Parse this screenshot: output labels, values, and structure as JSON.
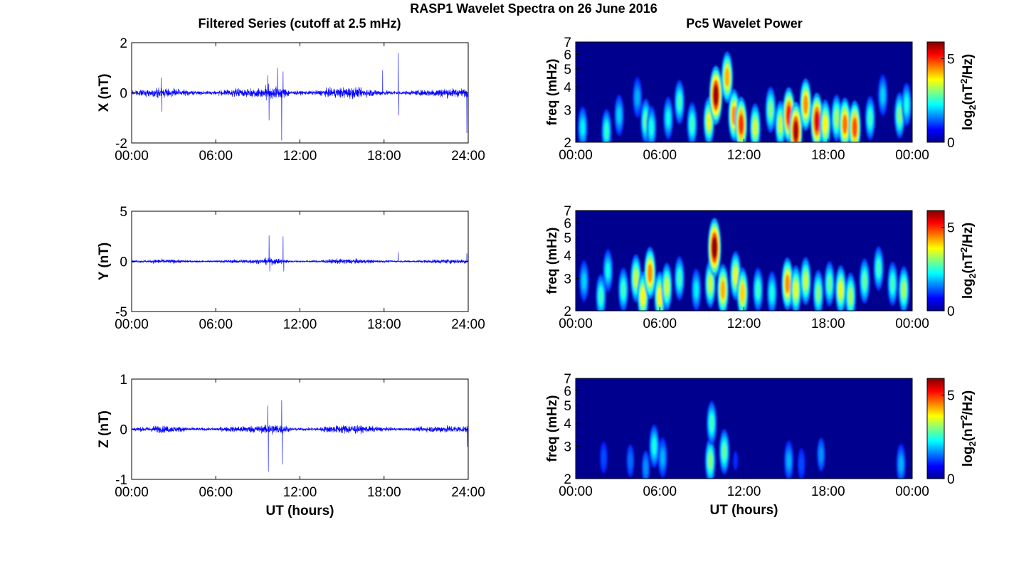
{
  "title": "RASP1 Wavelet Spectra on 26 June 2016",
  "left_title": "Filtered Series (cutoff at 2.5 mHz)",
  "right_title": "Pc5 Wavelet Power",
  "colors": {
    "trace": "#0000ff",
    "spec_background": "#00008f",
    "colormap": [
      "#00008f",
      "#0000ff",
      "#00ffff",
      "#ffff00",
      "#ff0000",
      "#800000"
    ]
  },
  "chart_data": [
    {
      "type": "line",
      "panel": "X",
      "ylabel": "X (nT)",
      "ylim": [
        -2,
        2
      ],
      "yticks": [
        "-2",
        "0",
        "2"
      ],
      "xlim": [
        0,
        24
      ],
      "xticks": [
        "00:00",
        "06:00",
        "12:00",
        "18:00",
        "24:00"
      ],
      "xlabel": "",
      "noise_amplitude": 0.25,
      "spikes": [
        {
          "t": 2.1,
          "v": 0.6
        },
        {
          "t": 2.15,
          "v": -0.75
        },
        {
          "t": 9.7,
          "v": 0.7
        },
        {
          "t": 9.8,
          "v": -1.1
        },
        {
          "t": 10.4,
          "v": 1.0
        },
        {
          "t": 10.7,
          "v": -1.9
        },
        {
          "t": 10.8,
          "v": 0.85
        },
        {
          "t": 17.9,
          "v": 0.9
        },
        {
          "t": 19.0,
          "v": 1.6
        },
        {
          "t": 19.05,
          "v": -0.9
        },
        {
          "t": 23.9,
          "v": -1.6
        }
      ]
    },
    {
      "type": "line",
      "panel": "Y",
      "ylabel": "Y (nT)",
      "ylim": [
        -5,
        5
      ],
      "yticks": [
        "-5",
        "0",
        "5"
      ],
      "xlim": [
        0,
        24
      ],
      "xticks": [
        "00:00",
        "06:00",
        "12:00",
        "18:00",
        "24:00"
      ],
      "xlabel": "",
      "noise_amplitude": 0.3,
      "spikes": [
        {
          "t": 9.8,
          "v": 2.6
        },
        {
          "t": 9.85,
          "v": -1.0
        },
        {
          "t": 10.8,
          "v": 2.5
        },
        {
          "t": 10.85,
          "v": -1.0
        },
        {
          "t": 19.0,
          "v": 0.9
        },
        {
          "t": 23.9,
          "v": 0.8
        }
      ]
    },
    {
      "type": "line",
      "panel": "Z",
      "ylabel": "Z (nT)",
      "ylim": [
        -1,
        1
      ],
      "yticks": [
        "-1",
        "0",
        "1"
      ],
      "xlim": [
        0,
        24
      ],
      "xticks": [
        "00:00",
        "06:00",
        "12:00",
        "18:00",
        "24:00"
      ],
      "xlabel": "UT (hours)",
      "noise_amplitude": 0.1,
      "spikes": [
        {
          "t": 9.7,
          "v": 0.47
        },
        {
          "t": 9.75,
          "v": -0.85
        },
        {
          "t": 10.7,
          "v": 0.58
        },
        {
          "t": 10.75,
          "v": -0.7
        },
        {
          "t": 23.95,
          "v": -0.35
        }
      ]
    },
    {
      "type": "heatmap",
      "panel": "X",
      "ylabel": "freq (mHz)",
      "yticks": [
        "2",
        "3",
        "4",
        "5",
        "6",
        "7"
      ],
      "ylim": [
        2,
        7
      ],
      "xlim": [
        0,
        24
      ],
      "xticks": [
        "00:00",
        "06:00",
        "12:00",
        "18:00",
        "00:00"
      ],
      "xlabel": "",
      "colorbar_label": "log2(nT^2/Hz)",
      "colorbar_ticks": [
        "0",
        "5"
      ],
      "clim": [
        0,
        6
      ],
      "blobs": [
        {
          "t": 0.5,
          "f": 2.4,
          "p": 2.2
        },
        {
          "t": 2.2,
          "f": 2.3,
          "p": 2.5
        },
        {
          "t": 3.1,
          "f": 2.8,
          "p": 2.0
        },
        {
          "t": 4.4,
          "f": 3.5,
          "p": 1.8
        },
        {
          "t": 5.0,
          "f": 2.6,
          "p": 2.8
        },
        {
          "t": 5.4,
          "f": 2.4,
          "p": 2.4
        },
        {
          "t": 6.6,
          "f": 2.7,
          "p": 2.3
        },
        {
          "t": 7.4,
          "f": 3.3,
          "p": 2.6
        },
        {
          "t": 8.3,
          "f": 2.5,
          "p": 2.6
        },
        {
          "t": 9.5,
          "f": 2.6,
          "p": 3.6
        },
        {
          "t": 10.0,
          "f": 3.6,
          "p": 5.8
        },
        {
          "t": 10.8,
          "f": 4.5,
          "p": 4.2
        },
        {
          "t": 11.3,
          "f": 2.8,
          "p": 4.4
        },
        {
          "t": 11.8,
          "f": 2.5,
          "p": 5.0
        },
        {
          "t": 12.8,
          "f": 2.4,
          "p": 3.5
        },
        {
          "t": 13.9,
          "f": 3.0,
          "p": 3.0
        },
        {
          "t": 14.6,
          "f": 2.5,
          "p": 3.4
        },
        {
          "t": 15.2,
          "f": 2.8,
          "p": 5.2
        },
        {
          "t": 15.7,
          "f": 2.3,
          "p": 5.7
        },
        {
          "t": 16.4,
          "f": 3.2,
          "p": 4.4
        },
        {
          "t": 17.2,
          "f": 2.6,
          "p": 5.4
        },
        {
          "t": 17.8,
          "f": 2.5,
          "p": 3.8
        },
        {
          "t": 18.6,
          "f": 2.7,
          "p": 3.2
        },
        {
          "t": 19.2,
          "f": 2.5,
          "p": 4.6
        },
        {
          "t": 19.9,
          "f": 2.4,
          "p": 4.8
        },
        {
          "t": 21.0,
          "f": 2.7,
          "p": 2.6
        },
        {
          "t": 21.9,
          "f": 3.6,
          "p": 2.0
        },
        {
          "t": 23.1,
          "f": 2.8,
          "p": 3.0
        },
        {
          "t": 23.6,
          "f": 3.2,
          "p": 2.4
        }
      ]
    },
    {
      "type": "heatmap",
      "panel": "Y",
      "ylabel": "freq (mHz)",
      "yticks": [
        "2",
        "3",
        "4",
        "5",
        "6",
        "7"
      ],
      "ylim": [
        2,
        7
      ],
      "xlim": [
        0,
        24
      ],
      "xticks": [
        "00:00",
        "06:00",
        "12:00",
        "18:00",
        "00:00"
      ],
      "xlabel": "",
      "colorbar_label": "log2(nT^2/Hz)",
      "colorbar_ticks": [
        "0",
        "5"
      ],
      "clim": [
        0,
        6
      ],
      "blobs": [
        {
          "t": 0.6,
          "f": 2.9,
          "p": 2.0
        },
        {
          "t": 1.8,
          "f": 2.4,
          "p": 2.6
        },
        {
          "t": 2.3,
          "f": 3.3,
          "p": 2.3
        },
        {
          "t": 3.4,
          "f": 2.6,
          "p": 2.6
        },
        {
          "t": 4.3,
          "f": 3.0,
          "p": 3.4
        },
        {
          "t": 4.8,
          "f": 2.4,
          "p": 3.8
        },
        {
          "t": 5.3,
          "f": 3.2,
          "p": 4.4
        },
        {
          "t": 6.0,
          "f": 2.4,
          "p": 3.8
        },
        {
          "t": 6.5,
          "f": 2.7,
          "p": 3.4
        },
        {
          "t": 7.4,
          "f": 3.0,
          "p": 2.6
        },
        {
          "t": 8.6,
          "f": 2.6,
          "p": 2.2
        },
        {
          "t": 9.6,
          "f": 2.8,
          "p": 3.4
        },
        {
          "t": 9.9,
          "f": 4.4,
          "p": 5.9
        },
        {
          "t": 10.5,
          "f": 2.6,
          "p": 4.2
        },
        {
          "t": 11.4,
          "f": 3.1,
          "p": 3.6
        },
        {
          "t": 11.9,
          "f": 2.5,
          "p": 4.0
        },
        {
          "t": 13.0,
          "f": 2.6,
          "p": 2.6
        },
        {
          "t": 14.0,
          "f": 2.5,
          "p": 2.4
        },
        {
          "t": 15.1,
          "f": 2.8,
          "p": 4.4
        },
        {
          "t": 15.7,
          "f": 2.6,
          "p": 3.6
        },
        {
          "t": 16.4,
          "f": 2.9,
          "p": 3.4
        },
        {
          "t": 17.3,
          "f": 2.5,
          "p": 3.0
        },
        {
          "t": 18.1,
          "f": 2.8,
          "p": 2.8
        },
        {
          "t": 18.9,
          "f": 2.6,
          "p": 3.6
        },
        {
          "t": 19.6,
          "f": 2.4,
          "p": 3.2
        },
        {
          "t": 20.6,
          "f": 2.9,
          "p": 2.8
        },
        {
          "t": 21.6,
          "f": 3.4,
          "p": 2.6
        },
        {
          "t": 22.6,
          "f": 2.8,
          "p": 2.6
        },
        {
          "t": 23.4,
          "f": 2.6,
          "p": 3.2
        }
      ]
    },
    {
      "type": "heatmap",
      "panel": "Z",
      "ylabel": "freq (mHz)",
      "yticks": [
        "2",
        "3",
        "4",
        "5",
        "6",
        "7"
      ],
      "ylim": [
        2,
        7
      ],
      "xlim": [
        0,
        24
      ],
      "xticks": [
        "00:00",
        "06:00",
        "12:00",
        "18:00",
        "00:00"
      ],
      "xlabel": "UT (hours)",
      "colorbar_label": "log2(nT^2/Hz)",
      "colorbar_ticks": [
        "0",
        "5"
      ],
      "clim": [
        0,
        6
      ],
      "blobs": [
        {
          "t": 2.0,
          "f": 2.6,
          "p": 1.2
        },
        {
          "t": 3.9,
          "f": 2.5,
          "p": 1.4
        },
        {
          "t": 5.0,
          "f": 2.3,
          "p": 1.6
        },
        {
          "t": 5.6,
          "f": 3.0,
          "p": 2.4
        },
        {
          "t": 6.2,
          "f": 2.6,
          "p": 1.8
        },
        {
          "t": 9.6,
          "f": 2.5,
          "p": 3.0
        },
        {
          "t": 9.7,
          "f": 4.0,
          "p": 2.6
        },
        {
          "t": 10.6,
          "f": 2.8,
          "p": 2.8
        },
        {
          "t": 11.4,
          "f": 2.5,
          "p": 1.0
        },
        {
          "t": 15.2,
          "f": 2.5,
          "p": 1.8
        },
        {
          "t": 16.1,
          "f": 2.4,
          "p": 1.2
        },
        {
          "t": 17.5,
          "f": 2.7,
          "p": 1.6
        },
        {
          "t": 23.2,
          "f": 2.4,
          "p": 1.8
        }
      ]
    }
  ]
}
